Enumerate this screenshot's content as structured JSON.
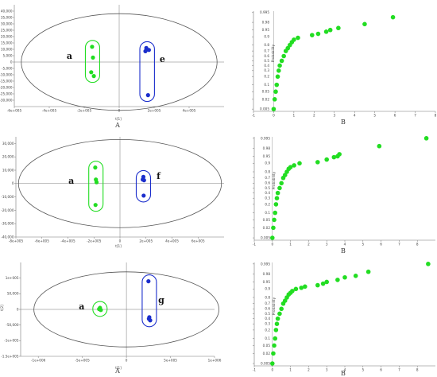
{
  "colors": {
    "green": "#22dd22",
    "blue": "#1b2ecc",
    "axis": "#777777",
    "ellipse": "#555555"
  },
  "chart_data": [
    {
      "type": "scatter",
      "kind": "score",
      "panel_label": "A",
      "xlabel": "t[1]",
      "ylabel": "t[2]",
      "xlim": [
        -600000,
        600000
      ],
      "ylim": [
        -35000,
        45000
      ],
      "xticks": [
        -600000,
        -400000,
        -200000,
        0,
        200000,
        400000
      ],
      "xtick_labels": [
        "-6e+005",
        "-4e+005",
        "-2e+005",
        "0",
        "2e+005",
        "4e+005"
      ],
      "yticks": [
        -30000,
        -25000,
        -20000,
        -15000,
        -10000,
        -5000,
        0,
        5000,
        10000,
        15000,
        20000,
        25000,
        30000,
        35000,
        40000
      ],
      "ytick_labels": [
        "-30,000",
        "-25,000",
        "-20,000",
        "-15,000",
        "-10,000",
        "-5,000",
        "0",
        "5,000",
        "10,000",
        "15,000",
        "20,000",
        "25,000",
        "30,000",
        "35,000",
        "40,000"
      ],
      "ellipse": {
        "rx": 560000,
        "ry": 38000
      },
      "groups": [
        {
          "label": "a",
          "color": "#22dd22",
          "points": [
            [
              -155000,
              12000
            ],
            [
              -150000,
              3500
            ],
            [
              -160000,
              -8000
            ],
            [
              -145000,
              -11000
            ]
          ]
        },
        {
          "label": "e",
          "color": "#1b2ecc",
          "points": [
            [
              155000,
              11000
            ],
            [
              150000,
              8500
            ],
            [
              170000,
              9500
            ],
            [
              165000,
              -26000
            ]
          ]
        }
      ]
    },
    {
      "type": "scatter",
      "kind": "probability",
      "panel_label": "B",
      "ylabel": "Probability",
      "xlim": [
        -1,
        8
      ],
      "xticks": [
        -1,
        0,
        1,
        2,
        3,
        4,
        5,
        6,
        7,
        8
      ],
      "xtick_labels": [
        "-1",
        "0",
        "1",
        "2",
        "3",
        "4",
        "5",
        "6",
        "7",
        "8"
      ],
      "yticks": [
        0.005,
        0.02,
        0.05,
        0.1,
        0.2,
        0.3,
        0.4,
        0.5,
        0.6,
        0.7,
        0.8,
        0.9,
        0.95,
        0.98,
        0.995
      ],
      "ytick_labels": [
        "0.005",
        "0.02",
        "0.05",
        "0.1",
        "0.2",
        "0.3",
        "0.4",
        "0.5",
        "0.6",
        "0.7",
        "0.8",
        "0.9",
        "0.95",
        "0.98",
        "0.995"
      ],
      "points_x": [
        0.0,
        0.05,
        0.1,
        0.15,
        0.2,
        0.25,
        0.3,
        0.4,
        0.5,
        0.6,
        0.7,
        0.8,
        0.9,
        1.0,
        1.2,
        1.9,
        2.2,
        2.6,
        2.8,
        3.2,
        4.5,
        5.9
      ],
      "points_y": [
        0.005,
        0.02,
        0.05,
        0.1,
        0.2,
        0.3,
        0.4,
        0.5,
        0.6,
        0.7,
        0.75,
        0.8,
        0.84,
        0.87,
        0.89,
        0.915,
        0.925,
        0.94,
        0.95,
        0.96,
        0.975,
        0.99
      ]
    },
    {
      "type": "scatter",
      "kind": "score",
      "panel_label": "",
      "xlabel": "t[1]",
      "ylabel": "t[2]",
      "xlim": [
        -800000,
        800000
      ],
      "ylim": [
        -40000,
        35000
      ],
      "xticks": [
        -800000,
        -600000,
        -400000,
        -200000,
        0,
        200000,
        400000,
        600000
      ],
      "xtick_labels": [
        "-8e+005",
        "-6e+005",
        "-4e+005",
        "-2e+005",
        "0",
        "2e+005",
        "4e+005",
        "6e+005"
      ],
      "yticks": [
        -40000,
        -30000,
        -20000,
        -10000,
        0,
        10000,
        20000,
        30000
      ],
      "ytick_labels": [
        "-40,000",
        "-30,000",
        "-20,000",
        "-10,000",
        "0",
        "10,000",
        "20,000",
        "30,000"
      ],
      "ellipse": {
        "rx": 780000,
        "ry": 33000
      },
      "groups": [
        {
          "label": "a",
          "color": "#22dd22",
          "points": [
            [
              -190000,
              12000
            ],
            [
              -185000,
              3000
            ],
            [
              -180000,
              1000
            ],
            [
              -188000,
              -16000
            ]
          ]
        },
        {
          "label": "f",
          "color": "#1b2ecc",
          "points": [
            [
              180000,
              5000
            ],
            [
              185000,
              2500
            ],
            [
              175000,
              3000
            ],
            [
              182000,
              -9000
            ]
          ]
        }
      ]
    },
    {
      "type": "scatter",
      "kind": "probability",
      "panel_label": "B",
      "ylabel": "Probability",
      "xlim": [
        -1,
        9
      ],
      "xticks": [
        -1,
        0,
        1,
        2,
        3,
        4,
        5,
        6,
        7,
        8
      ],
      "xtick_labels": [
        "-1",
        "0",
        "1",
        "2",
        "3",
        "4",
        "5",
        "6",
        "7",
        "8"
      ],
      "yticks": [
        0.005,
        0.02,
        0.05,
        0.1,
        0.2,
        0.3,
        0.4,
        0.5,
        0.6,
        0.7,
        0.8,
        0.9,
        0.95,
        0.98,
        0.995
      ],
      "ytick_labels": [
        "0.005",
        "0.02",
        "0.05",
        "0.1",
        "0.2",
        "0.3",
        "0.4",
        "0.5",
        "0.6",
        "0.7",
        "0.8",
        "0.9",
        "0.95",
        "0.98",
        "0.995"
      ],
      "points_x": [
        0.0,
        0.05,
        0.1,
        0.15,
        0.2,
        0.25,
        0.3,
        0.4,
        0.5,
        0.6,
        0.7,
        0.8,
        0.9,
        1.0,
        1.2,
        1.5,
        2.5,
        3.0,
        3.4,
        3.6,
        3.7,
        5.9,
        8.5
      ],
      "points_y": [
        0.005,
        0.02,
        0.05,
        0.1,
        0.2,
        0.3,
        0.4,
        0.5,
        0.6,
        0.7,
        0.75,
        0.8,
        0.84,
        0.86,
        0.88,
        0.9,
        0.91,
        0.93,
        0.945,
        0.95,
        0.96,
        0.985,
        0.995
      ]
    },
    {
      "type": "scatter",
      "kind": "score",
      "panel_label": "A",
      "xlabel": "t[1]",
      "ylabel": "t[2]",
      "xlim": [
        -1200000,
        1000000
      ],
      "ylim": [
        -150000,
        150000
      ],
      "xticks": [
        -1000000,
        -500000,
        0,
        500000,
        1000000
      ],
      "xtick_labels": [
        "-1e+006",
        "-5e+005",
        "0",
        "5e+005",
        "1e+006"
      ],
      "yticks": [
        -150000,
        -100000,
        -50000,
        0,
        50000,
        100000
      ],
      "ytick_labels": [
        "-1.5e+005",
        "-1e+005",
        "-50,000",
        "0",
        "50,000",
        "1e+005"
      ],
      "ellipse": {
        "rx": 1050000,
        "ry": 120000
      },
      "groups": [
        {
          "label": "a",
          "color": "#22dd22",
          "points": [
            [
              -300000,
              5000
            ],
            [
              -290000,
              -2000
            ],
            [
              -310000,
              1000
            ]
          ]
        },
        {
          "label": "g",
          "color": "#1b2ecc",
          "points": [
            [
              250000,
              90000
            ],
            [
              260000,
              -25000
            ],
            [
              270000,
              -35000
            ],
            [
              255000,
              -30000
            ]
          ]
        }
      ]
    },
    {
      "type": "scatter",
      "kind": "probability",
      "panel_label": "B",
      "ylabel": "Probability",
      "xlim": [
        -1,
        9
      ],
      "xticks": [
        -1,
        0,
        1,
        2,
        3,
        4,
        5,
        6,
        7,
        8
      ],
      "xtick_labels": [
        "-1",
        "0",
        "1",
        "2",
        "3",
        "4",
        "5",
        "6",
        "7",
        "8"
      ],
      "yticks": [
        0.005,
        0.02,
        0.05,
        0.1,
        0.2,
        0.3,
        0.4,
        0.5,
        0.6,
        0.7,
        0.8,
        0.9,
        0.95,
        0.98,
        0.995
      ],
      "ytick_labels": [
        "0.005",
        "0.02",
        "0.05",
        "0.1",
        "0.2",
        "0.3",
        "0.4",
        "0.5",
        "0.6",
        "0.7",
        "0.8",
        "0.9",
        "0.95",
        "0.98",
        "0.995"
      ],
      "points_x": [
        0.0,
        0.05,
        0.1,
        0.15,
        0.2,
        0.25,
        0.3,
        0.4,
        0.5,
        0.6,
        0.7,
        0.8,
        0.9,
        1.0,
        1.1,
        1.3,
        1.6,
        1.8,
        2.5,
        2.8,
        3.0,
        3.6,
        4.0,
        4.6,
        5.3,
        8.6
      ],
      "points_y": [
        0.005,
        0.02,
        0.05,
        0.1,
        0.2,
        0.3,
        0.4,
        0.5,
        0.6,
        0.7,
        0.75,
        0.8,
        0.84,
        0.86,
        0.88,
        0.9,
        0.91,
        0.92,
        0.93,
        0.94,
        0.95,
        0.96,
        0.97,
        0.975,
        0.985,
        0.995
      ]
    }
  ]
}
